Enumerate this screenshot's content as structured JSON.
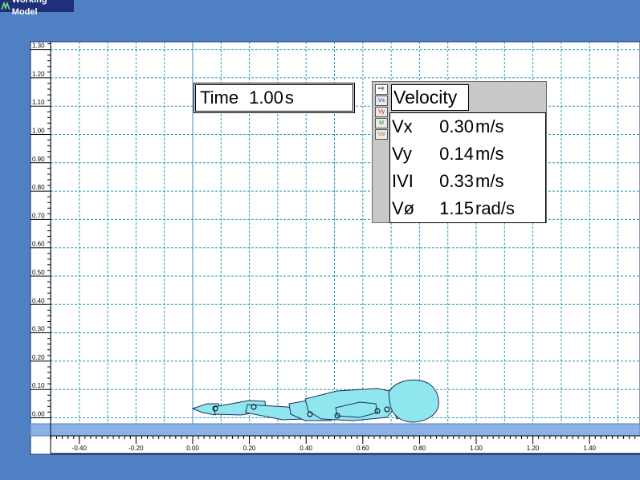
{
  "window": {
    "title": "Working Model",
    "app_icon": "working-model-icon"
  },
  "colors": {
    "background": "#4f80c3",
    "grid": "#2a9bb2",
    "body_fill": "#8fe6ef",
    "ground": "#8ab2e6"
  },
  "time_display": {
    "label": "Time",
    "value": "1.00",
    "unit": "s"
  },
  "velocity_meter": {
    "title": "Velocity",
    "tools": [
      "arrow-icon",
      "Vx",
      "Vy",
      "M",
      "Vø"
    ],
    "rows": [
      {
        "name": "Vx",
        "value": "0.30",
        "unit": "m/s"
      },
      {
        "name": "Vy",
        "value": "0.14",
        "unit": "m/s"
      },
      {
        "name": "IVI",
        "value": "0.33",
        "unit": "m/s"
      },
      {
        "name": "Vø",
        "value": "1.15",
        "unit": "rad/s"
      }
    ]
  },
  "workspace": {
    "y_ticks": [
      "0.00",
      "0.10",
      "0.20",
      "0.30",
      "0.40",
      "0.50",
      "0.60",
      "0.70",
      "0.80",
      "0.90",
      "1.00",
      "1.10",
      "1.20",
      "1.30"
    ],
    "x_ticks": [
      "-0.40",
      "-0.20",
      "0.00",
      "0.20",
      "0.40",
      "0.60",
      "0.80",
      "1.00",
      "1.20",
      "1.40"
    ]
  }
}
